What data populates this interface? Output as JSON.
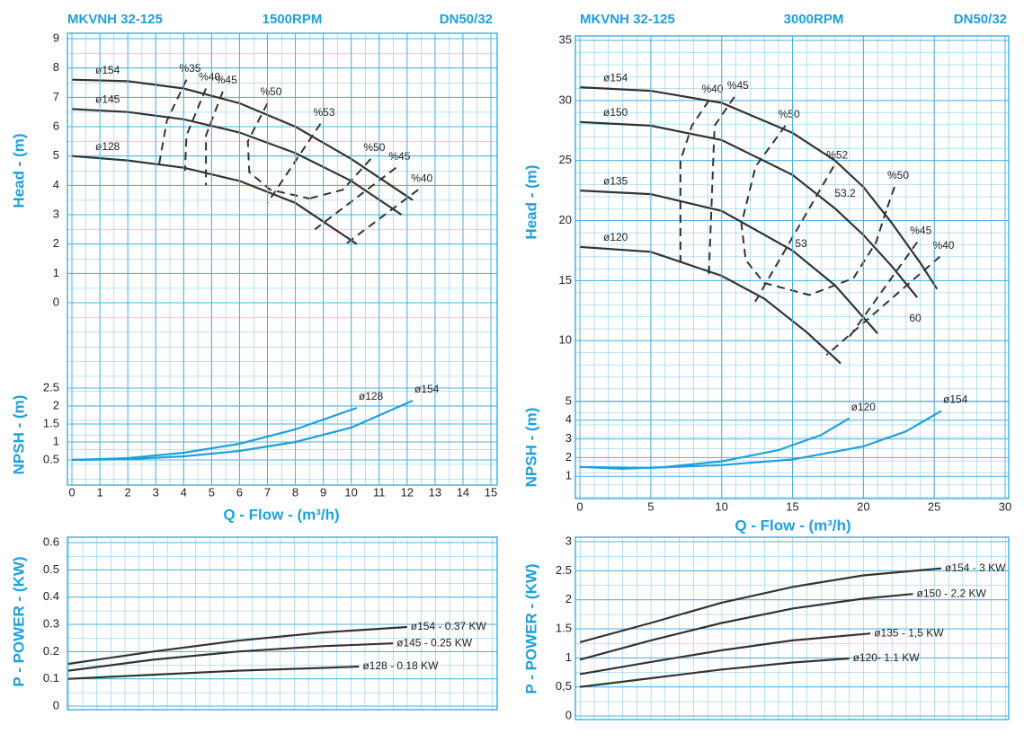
{
  "chart_data": [
    {
      "type": "line",
      "title": "MKVNH 32-125",
      "subtitle": "1500RPM",
      "flange": "DN50/32",
      "ylabel": "Head - (m)",
      "xlim": [
        0,
        15
      ],
      "ylim": [
        0,
        9
      ],
      "yticks": [
        0,
        1,
        2,
        3,
        4,
        5,
        6,
        7,
        8,
        9
      ],
      "grid": true,
      "series": [
        {
          "name": "ø154",
          "color": "#333333",
          "style": "solid",
          "x": [
            0,
            2,
            4,
            6,
            8,
            10,
            12.2
          ],
          "values": [
            7.6,
            7.55,
            7.3,
            6.8,
            6.0,
            4.9,
            3.5
          ]
        },
        {
          "name": "ø145",
          "color": "#333333",
          "style": "solid",
          "x": [
            0,
            2,
            4,
            6,
            8,
            10,
            11.8
          ],
          "values": [
            6.6,
            6.5,
            6.25,
            5.8,
            5.1,
            4.15,
            3.0
          ]
        },
        {
          "name": "ø128",
          "color": "#333333",
          "style": "solid",
          "x": [
            0,
            2,
            4,
            6,
            8,
            10.2
          ],
          "values": [
            5.0,
            4.85,
            4.6,
            4.15,
            3.4,
            2.0
          ]
        },
        {
          "name": "%35",
          "color": "#333333",
          "style": "dashed",
          "x": [
            4.1,
            3.4,
            3.1
          ],
          "values": [
            7.6,
            6.2,
            4.6
          ]
        },
        {
          "name": "%40",
          "color": "#333333",
          "style": "dashed",
          "x": [
            4.8,
            4.1,
            4.05
          ],
          "values": [
            7.3,
            5.7,
            4.5
          ]
        },
        {
          "name": "%45",
          "color": "#333333",
          "style": "dashed",
          "x": [
            5.4,
            4.8,
            4.8
          ],
          "values": [
            7.2,
            5.7,
            4.0
          ]
        },
        {
          "name": "%50",
          "color": "#333333",
          "style": "dashed",
          "x": [
            7.0,
            6.3,
            6.35,
            7.1,
            8.5
          ],
          "values": [
            6.8,
            5.5,
            4.45,
            3.85,
            3.55
          ]
        },
        {
          "name": "%53",
          "color": "#333333",
          "style": "dashed",
          "x": [
            8.9,
            7.0
          ],
          "values": [
            6.1,
            3.4
          ]
        },
        {
          "name": "%50",
          "color": "#333333",
          "style": "dashed",
          "x": [
            10.7,
            9.7,
            8.5
          ],
          "values": [
            4.9,
            3.85,
            3.55
          ]
        },
        {
          "name": "%45",
          "color": "#333333",
          "style": "dashed",
          "x": [
            11.6,
            8.7
          ],
          "values": [
            4.6,
            2.5
          ]
        },
        {
          "name": "%40",
          "color": "#333333",
          "style": "dashed",
          "x": [
            12.4,
            9.8
          ],
          "values": [
            3.85,
            2.0
          ]
        }
      ]
    },
    {
      "type": "line",
      "ylabel": "NPSH - (m)",
      "xlabel": "Q - Flow - (m³/h)",
      "xlim": [
        0,
        15
      ],
      "xticks": [
        0,
        1,
        2,
        3,
        4,
        5,
        6,
        7,
        8,
        9,
        10,
        11,
        12,
        13,
        14,
        15
      ],
      "ylim": [
        0,
        2.5
      ],
      "yticks": [
        0.5,
        1,
        1.5,
        2,
        2.5
      ],
      "series": [
        {
          "name": "ø128",
          "color": "#1ea0dc",
          "style": "solid",
          "x": [
            0,
            2,
            4,
            6,
            8,
            10.2
          ],
          "values": [
            0.5,
            0.55,
            0.7,
            0.95,
            1.35,
            1.95
          ]
        },
        {
          "name": "ø154",
          "color": "#1ea0dc",
          "style": "solid",
          "x": [
            0,
            2,
            4,
            6,
            8,
            10,
            12.2
          ],
          "values": [
            0.5,
            0.52,
            0.6,
            0.75,
            1.0,
            1.4,
            2.15
          ]
        }
      ]
    },
    {
      "type": "line",
      "ylabel": "P - POWER - (KW)",
      "xlim": [
        0,
        15
      ],
      "ylim": [
        0,
        0.6
      ],
      "yticks": [
        0,
        0.1,
        0.2,
        0.3,
        0.4,
        0.5,
        0.6
      ],
      "grid": true,
      "series": [
        {
          "name": "ø154 - 0.37 KW",
          "color": "#333333",
          "style": "solid",
          "x": [
            0,
            3,
            6,
            9,
            12
          ],
          "values": [
            0.155,
            0.2,
            0.24,
            0.27,
            0.29
          ]
        },
        {
          "name": "ø145 - 0.25 KW",
          "color": "#333333",
          "style": "solid",
          "x": [
            0,
            3,
            6,
            9,
            11.5
          ],
          "values": [
            0.13,
            0.17,
            0.2,
            0.22,
            0.23
          ]
        },
        {
          "name": "ø128 - 0.18 KW",
          "color": "#333333",
          "style": "solid",
          "x": [
            0,
            3,
            6,
            9,
            10.3
          ],
          "values": [
            0.1,
            0.115,
            0.13,
            0.14,
            0.145
          ]
        }
      ]
    },
    {
      "type": "line",
      "title": "MKVNH 32-125",
      "subtitle": "3000RPM",
      "flange": "DN50/32",
      "ylabel": "Head - (m)",
      "xlim": [
        0,
        30
      ],
      "ylim": [
        5,
        35
      ],
      "yticks": [
        10,
        15,
        20,
        25,
        30,
        35
      ],
      "grid": true,
      "annotations": [
        "53.2",
        "53",
        "60"
      ],
      "series": [
        {
          "name": "ø154",
          "color": "#333333",
          "style": "solid",
          "x": [
            0,
            5,
            10,
            15,
            18,
            20,
            22,
            24,
            25.2
          ],
          "values": [
            31.1,
            30.8,
            29.8,
            27.3,
            25,
            22.8,
            19.8,
            16.5,
            14.3
          ]
        },
        {
          "name": "ø150",
          "color": "#333333",
          "style": "solid",
          "x": [
            0,
            5,
            10,
            15,
            18,
            20,
            22,
            23.8
          ],
          "values": [
            28.2,
            27.9,
            26.7,
            23.8,
            21,
            18.8,
            16.2,
            13.6
          ]
        },
        {
          "name": "ø135",
          "color": "#333333",
          "style": "solid",
          "x": [
            0,
            5,
            10,
            15,
            18,
            21
          ],
          "values": [
            22.5,
            22.2,
            20.8,
            17.5,
            14.6,
            10.6
          ]
        },
        {
          "name": "ø120",
          "color": "#333333",
          "style": "solid",
          "x": [
            0,
            5,
            10,
            13,
            16,
            18.4
          ],
          "values": [
            17.8,
            17.4,
            15.4,
            13.5,
            10.7,
            8.1
          ]
        },
        {
          "name": "%40",
          "color": "#333333",
          "style": "dashed",
          "x": [
            9.1,
            7.9,
            7.1,
            7.1
          ],
          "values": [
            30,
            27.9,
            25,
            16.5
          ]
        },
        {
          "name": "%45",
          "color": "#333333",
          "style": "dashed",
          "x": [
            10.9,
            9.5,
            9.1
          ],
          "values": [
            30.3,
            27.9,
            15.5
          ]
        },
        {
          "name": "%50",
          "color": "#333333",
          "style": "dashed",
          "x": [
            14.5,
            12.4,
            11.4,
            11.7,
            13.0,
            16.2,
            19.3,
            20.9,
            21.6
          ],
          "values": [
            27.9,
            24.5,
            19.7,
            16.7,
            14.8,
            13.8,
            15.2,
            18.2,
            20.8
          ]
        },
        {
          "name": "%52",
          "color": "#333333",
          "style": "dashed",
          "x": [
            17.9,
            12.2
          ],
          "values": [
            24.5,
            12.9
          ]
        },
        {
          "name": "%50",
          "color": "#333333",
          "style": "dashed",
          "x": [
            22.2,
            21.6
          ],
          "values": [
            22.8,
            20.8
          ]
        },
        {
          "name": "%45",
          "color": "#333333",
          "style": "dashed",
          "x": [
            23.8,
            19.0
          ],
          "values": [
            18.2,
            10.3
          ]
        },
        {
          "name": "%40",
          "color": "#333333",
          "style": "dashed",
          "x": [
            25.4,
            17.4
          ],
          "values": [
            17.0,
            8.8
          ]
        }
      ]
    },
    {
      "type": "line",
      "ylabel": "NPSH - (m)",
      "xlabel": "Q - Flow - (m³/h)",
      "xlim": [
        0,
        30
      ],
      "xticks": [
        0,
        5,
        10,
        15,
        20,
        25,
        30
      ],
      "ylim": [
        0,
        5
      ],
      "yticks": [
        1,
        2,
        3,
        4,
        5
      ],
      "series": [
        {
          "name": "ø120",
          "color": "#1ea0dc",
          "style": "solid",
          "x": [
            0,
            3,
            6,
            10,
            14,
            17,
            19
          ],
          "values": [
            1.5,
            1.4,
            1.5,
            1.8,
            2.4,
            3.2,
            4.1
          ]
        },
        {
          "name": "ø154",
          "color": "#1ea0dc",
          "style": "solid",
          "x": [
            0,
            5,
            10,
            15,
            20,
            23,
            25.5
          ],
          "values": [
            1.5,
            1.45,
            1.6,
            1.9,
            2.6,
            3.4,
            4.5
          ]
        }
      ]
    },
    {
      "type": "line",
      "ylabel": "P - POWER - (KW)",
      "xlim": [
        0,
        30
      ],
      "ylim": [
        0,
        3
      ],
      "yticks": [
        0,
        {
          "value": 0.5,
          "label": "0,5"
        },
        1,
        1.5,
        2,
        2.5,
        3
      ],
      "grid": true,
      "series": [
        {
          "name": "ø154 - 3 KW",
          "color": "#333333",
          "style": "solid",
          "x": [
            0,
            5,
            10,
            15,
            20,
            25.5
          ],
          "values": [
            1.27,
            1.6,
            1.95,
            2.22,
            2.42,
            2.54
          ]
        },
        {
          "name": "ø150 - 2,2 KW",
          "color": "#333333",
          "style": "solid",
          "x": [
            0,
            5,
            10,
            15,
            20,
            23.5
          ],
          "values": [
            0.97,
            1.3,
            1.6,
            1.85,
            2.02,
            2.1
          ]
        },
        {
          "name": "ø135 - 1,5 KW",
          "color": "#333333",
          "style": "solid",
          "x": [
            0,
            5,
            10,
            15,
            20.5
          ],
          "values": [
            0.72,
            0.93,
            1.13,
            1.3,
            1.42
          ]
        },
        {
          "name": "ø120- 1.1 KW",
          "color": "#333333",
          "style": "solid",
          "x": [
            0,
            5,
            10,
            15,
            19
          ],
          "values": [
            0.5,
            0.65,
            0.8,
            0.92,
            0.99
          ]
        }
      ]
    }
  ]
}
